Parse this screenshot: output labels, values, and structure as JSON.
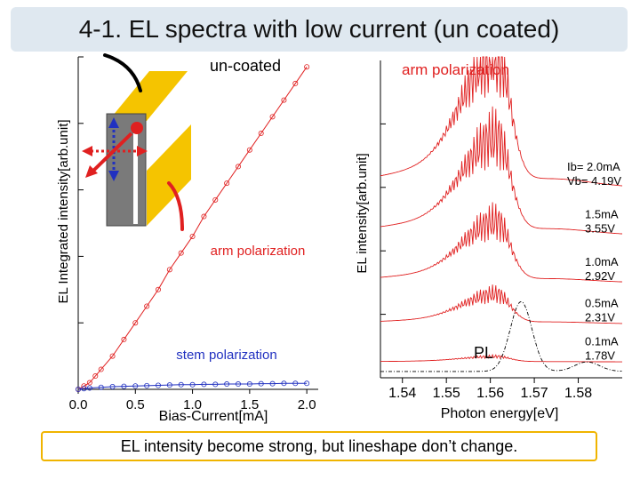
{
  "slide": {
    "title": "4-1. EL spectra with low current (un coated)",
    "caption": "EL intensity become strong, but lineshape don’t change."
  },
  "colors": {
    "red": "#e02020",
    "blue": "#2030c0",
    "gold": "#f5c400",
    "gray": "#7a7a7a",
    "title_bg": "#dfe8f0",
    "caption_border": "#f0b400"
  },
  "chart_data": [
    {
      "type": "scatter",
      "title": "un-coated",
      "xlabel": "Bias-Current[mA]",
      "ylabel": "EL Integrated intensity[arb.unit]",
      "xlim": [
        0,
        2.1
      ],
      "ylim": [
        0,
        1
      ],
      "xticks": [
        "0.0",
        "0.5",
        "1.0",
        "1.5",
        "2.0"
      ],
      "xtick_values": [
        0.0,
        0.5,
        1.0,
        1.5,
        2.0
      ],
      "series": [
        {
          "name": "arm polarization",
          "color": "#e02020",
          "x": [
            0.0,
            0.05,
            0.1,
            0.15,
            0.2,
            0.3,
            0.4,
            0.5,
            0.6,
            0.7,
            0.8,
            0.9,
            1.0,
            1.1,
            1.2,
            1.3,
            1.4,
            1.5,
            1.6,
            1.7,
            1.8,
            1.9,
            2.0
          ],
          "y": [
            0.0,
            0.01,
            0.02,
            0.04,
            0.06,
            0.1,
            0.15,
            0.2,
            0.25,
            0.3,
            0.36,
            0.41,
            0.46,
            0.52,
            0.57,
            0.62,
            0.67,
            0.72,
            0.77,
            0.82,
            0.87,
            0.92,
            0.97
          ]
        },
        {
          "name": "stem polarization",
          "color": "#2030c0",
          "x": [
            0.0,
            0.05,
            0.1,
            0.2,
            0.3,
            0.4,
            0.5,
            0.6,
            0.7,
            0.8,
            0.9,
            1.0,
            1.1,
            1.2,
            1.3,
            1.4,
            1.5,
            1.6,
            1.7,
            1.8,
            1.9,
            2.0
          ],
          "y": [
            0.0,
            0.002,
            0.004,
            0.006,
            0.008,
            0.009,
            0.01,
            0.011,
            0.012,
            0.013,
            0.014,
            0.014,
            0.015,
            0.015,
            0.016,
            0.016,
            0.016,
            0.017,
            0.017,
            0.018,
            0.018,
            0.018
          ]
        }
      ],
      "annotations": [
        "arm polarization",
        "stem polarization"
      ]
    },
    {
      "type": "line",
      "title": "arm polarization",
      "xlabel": "Photon energy[eV]",
      "ylabel": "EL intensity[arb.unit]",
      "xlim": [
        1.535,
        1.59
      ],
      "xticks": [
        "1.54",
        "1.55",
        "1.56",
        "1.57",
        "1.58"
      ],
      "xtick_values": [
        1.54,
        1.55,
        1.56,
        1.57,
        1.58
      ],
      "series": [
        {
          "name": "2.0mA",
          "current": "2.0mA",
          "voltage": "4.19V",
          "offset": 0.6,
          "scale": 1.0
        },
        {
          "name": "1.5mA",
          "current": "1.5mA",
          "voltage": "3.55V",
          "offset": 0.45,
          "scale": 0.72
        },
        {
          "name": "1.0mA",
          "current": "1.0mA",
          "voltage": "2.92V",
          "offset": 0.3,
          "scale": 0.45
        },
        {
          "name": "0.5mA",
          "current": "0.5mA",
          "voltage": "2.31V",
          "offset": 0.17,
          "scale": 0.22
        },
        {
          "name": "0.1mA",
          "current": "0.1mA",
          "voltage": "1.78V",
          "offset": 0.05,
          "scale": 0.04
        }
      ],
      "reference": {
        "name": "PL",
        "peak_ev": 1.567
      },
      "first_labels": {
        "current_prefix": "Ib=",
        "voltage_prefix": "Vb="
      }
    }
  ]
}
